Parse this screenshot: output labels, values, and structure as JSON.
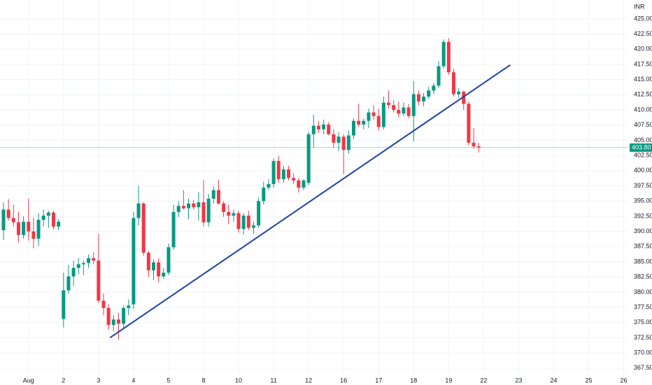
{
  "chart_data": {
    "type": "candlestick",
    "currency": "INR",
    "up_color": "#089981",
    "down_color": "#f23645",
    "open": [
      390.2,
      393.6,
      392.2,
      391.5,
      389.4,
      391.6,
      390.0,
      388.8,
      391.9,
      392.6,
      393.1,
      390.8,
      375.6,
      380.3,
      382.6,
      384.0,
      384.6,
      384.8,
      385.6,
      385.2,
      378.6,
      377.4,
      374.6,
      375.5,
      374.8,
      377.4,
      378.0,
      392.2,
      394.6,
      386.5,
      383.6,
      384.9,
      382.6,
      383.2,
      387.4,
      393.2,
      394.2,
      393.8,
      394.6,
      394.0,
      394.8,
      391.5,
      395.4,
      396.8,
      394.6,
      393.2,
      392.6,
      393.0,
      390.4,
      392.6,
      390.6,
      391.0,
      395.0,
      397.2,
      397.8,
      401.6,
      398.6,
      400.2,
      398.8,
      398.4,
      397.2,
      398.0,
      406.0,
      407.4,
      406.8,
      407.6,
      406.0,
      404.6,
      405.6,
      403.4,
      405.8,
      408.2,
      407.6,
      408.2,
      409.6,
      409.0,
      407.2,
      411.2,
      410.8,
      410.0,
      409.4,
      410.4,
      409.0,
      412.6,
      411.4,
      412.2,
      413.2,
      414.0,
      417.2,
      421.2,
      416.2,
      412.6,
      413.0,
      411.0,
      404.6,
      404.0
    ],
    "high": [
      394.8,
      395.3,
      394.4,
      393.2,
      392.5,
      395.4,
      392.2,
      393.0,
      393.6,
      393.4,
      393.4,
      392.0,
      383.2,
      384.5,
      385.2,
      385.6,
      385.2,
      386.2,
      386.6,
      389.6,
      379.8,
      378.0,
      376.2,
      376.6,
      377.8,
      378.8,
      393.2,
      397.5,
      394.8,
      386.8,
      385.4,
      385.6,
      384.0,
      388.0,
      394.4,
      395.0,
      396.8,
      395.4,
      395.2,
      396.5,
      398.5,
      396.2,
      397.4,
      398.5,
      395.0,
      394.4,
      393.6,
      393.4,
      393.0,
      393.4,
      391.6,
      395.6,
      398.2,
      398.6,
      402.0,
      402.4,
      400.8,
      400.8,
      399.6,
      398.8,
      398.6,
      406.4,
      409.2,
      408.2,
      408.4,
      408.0,
      406.8,
      406.4,
      406.0,
      406.6,
      408.6,
      411.0,
      408.6,
      410.2,
      410.8,
      410.2,
      412.2,
      413.2,
      411.6,
      411.4,
      411.2,
      411.0,
      414.8,
      413.2,
      412.8,
      413.8,
      414.4,
      418.0,
      421.6,
      421.8,
      416.8,
      413.6,
      413.2,
      411.4,
      407.0,
      404.6
    ],
    "low": [
      388.6,
      391.8,
      390.8,
      388.2,
      388.8,
      388.5,
      387.2,
      387.6,
      390.8,
      390.6,
      390.4,
      390.2,
      374.2,
      379.8,
      381.0,
      383.0,
      382.8,
      384.0,
      384.6,
      378.2,
      376.2,
      373.8,
      373.6,
      372.2,
      374.0,
      376.2,
      377.2,
      391.0,
      386.0,
      382.5,
      382.0,
      381.6,
      382.2,
      382.8,
      387.0,
      392.4,
      393.6,
      392.0,
      393.6,
      391.8,
      390.8,
      390.8,
      394.6,
      394.4,
      392.4,
      391.2,
      391.6,
      389.8,
      389.5,
      390.2,
      389.6,
      390.6,
      394.4,
      396.8,
      397.2,
      398.0,
      398.0,
      398.4,
      397.8,
      396.4,
      396.8,
      397.6,
      403.8,
      406.2,
      406.0,
      405.8,
      403.8,
      403.2,
      399.4,
      402.8,
      405.2,
      407.2,
      406.8,
      407.0,
      408.4,
      406.6,
      406.8,
      410.2,
      409.6,
      408.8,
      409.0,
      408.6,
      404.8,
      410.8,
      410.6,
      411.8,
      412.6,
      413.6,
      416.8,
      415.8,
      412.2,
      412.0,
      410.0,
      404.2,
      403.6,
      403.0
    ],
    "close": [
      393.6,
      392.2,
      391.5,
      389.4,
      391.6,
      390.0,
      388.8,
      391.9,
      392.6,
      393.1,
      390.8,
      391.6,
      380.3,
      382.6,
      384.0,
      384.6,
      384.8,
      385.6,
      385.2,
      378.6,
      377.4,
      374.6,
      375.5,
      374.8,
      377.4,
      377.8,
      392.2,
      394.6,
      386.5,
      383.6,
      384.9,
      382.6,
      383.2,
      387.4,
      393.2,
      394.2,
      393.8,
      394.6,
      394.0,
      394.8,
      391.5,
      395.4,
      396.8,
      394.6,
      393.2,
      392.6,
      393.0,
      390.4,
      392.6,
      390.6,
      391.0,
      395.0,
      397.2,
      397.8,
      401.6,
      398.6,
      400.2,
      398.8,
      398.4,
      397.2,
      398.4,
      406.0,
      407.4,
      406.8,
      407.6,
      406.0,
      404.6,
      405.6,
      403.4,
      405.8,
      408.2,
      407.6,
      408.2,
      409.6,
      409.0,
      407.2,
      411.2,
      410.8,
      410.0,
      409.4,
      410.4,
      409.0,
      412.6,
      411.4,
      412.2,
      413.2,
      414.0,
      417.2,
      421.2,
      416.2,
      412.6,
      413.0,
      411.0,
      404.6,
      404.0,
      403.8
    ],
    "xlim": [
      -0.7,
      124.9
    ],
    "xticks": [
      {
        "value": 5,
        "label": "Aug"
      },
      {
        "value": 12,
        "label": "2"
      },
      {
        "value": 19,
        "label": "3"
      },
      {
        "value": 26,
        "label": "4"
      },
      {
        "value": 33,
        "label": "5"
      },
      {
        "value": 40,
        "label": "8"
      },
      {
        "value": 47,
        "label": "10"
      },
      {
        "value": 54,
        "label": "11"
      },
      {
        "value": 61,
        "label": "12"
      },
      {
        "value": 68,
        "label": "16"
      },
      {
        "value": 75,
        "label": "17"
      },
      {
        "value": 82,
        "label": "18"
      },
      {
        "value": 89,
        "label": "19"
      },
      {
        "value": 96,
        "label": "22"
      },
      {
        "value": 103,
        "label": "23"
      },
      {
        "value": 110,
        "label": "24"
      },
      {
        "value": 117,
        "label": "25"
      },
      {
        "value": 124,
        "label": "26"
      }
    ],
    "ylim": [
      366.1,
      428.1
    ],
    "yticks": [
      {
        "value": 367.5,
        "label": "367.50"
      },
      {
        "value": 370,
        "label": "370.00"
      },
      {
        "value": 372.5,
        "label": "372.50"
      },
      {
        "value": 375,
        "label": "375.00"
      },
      {
        "value": 377.5,
        "label": "377.50"
      },
      {
        "value": 380,
        "label": "380.00"
      },
      {
        "value": 382.5,
        "label": "382.50"
      },
      {
        "value": 385,
        "label": "385.00"
      },
      {
        "value": 387.5,
        "label": "387.50"
      },
      {
        "value": 390,
        "label": "390.00"
      },
      {
        "value": 392.5,
        "label": "392.50"
      },
      {
        "value": 395,
        "label": "395.00"
      },
      {
        "value": 397.5,
        "label": "397.50"
      },
      {
        "value": 400,
        "label": "400.00"
      },
      {
        "value": 402.5,
        "label": "402.50"
      },
      {
        "value": 405,
        "label": "405.00"
      },
      {
        "value": 407.5,
        "label": "407.50"
      },
      {
        "value": 410,
        "label": "410.00"
      },
      {
        "value": 412.5,
        "label": "412.50"
      },
      {
        "value": 415,
        "label": "415.00"
      },
      {
        "value": 417.5,
        "label": "417.50"
      },
      {
        "value": 420,
        "label": "420.00"
      },
      {
        "value": 422.5,
        "label": "422.50"
      },
      {
        "value": 425,
        "label": "425.00"
      }
    ],
    "grid": true,
    "last_price": {
      "value": 403.8,
      "label": "403.80",
      "color": "#089981"
    },
    "trendline": {
      "x": [
        21.3,
        101.3
      ],
      "y": [
        372.5,
        417.4
      ],
      "color": "#1e3fa8"
    }
  }
}
